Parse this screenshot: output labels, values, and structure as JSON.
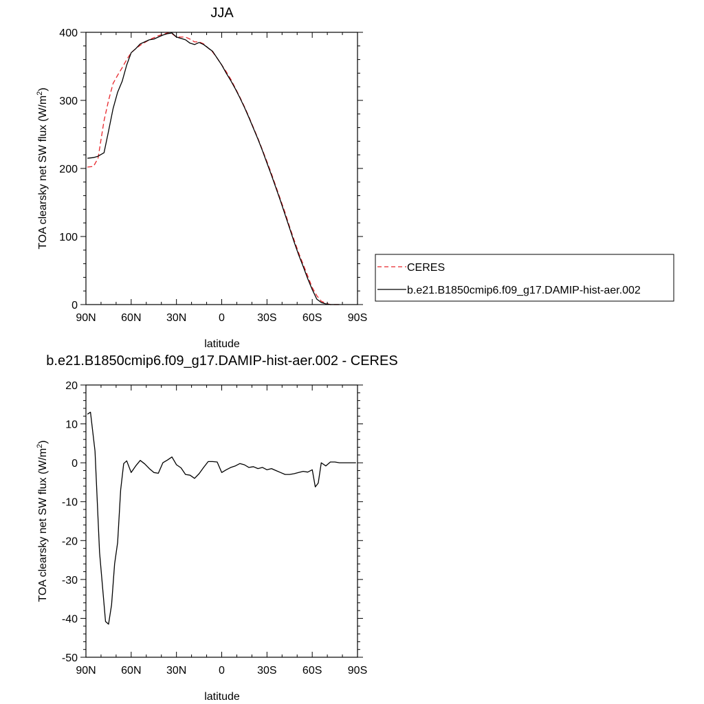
{
  "chart_data": [
    {
      "type": "line",
      "title": "JJA",
      "xlabel": "latitude",
      "ylabel": "TOA clearsky net SW flux (W/m",
      "ylabel_sup": "2",
      "ylabel_tail": ")",
      "xlim": [
        90,
        -90
      ],
      "ylim": [
        0,
        400
      ],
      "xticks": [
        90,
        60,
        30,
        0,
        -30,
        -60,
        -90
      ],
      "xtick_labels": [
        "90N",
        "60N",
        "30N",
        "0",
        "30S",
        "60S",
        "90S"
      ],
      "yticks": [
        0,
        100,
        200,
        300,
        400
      ],
      "ytick_labels": [
        "0",
        "100",
        "200",
        "300",
        "400"
      ],
      "legend_position": "right",
      "series": [
        {
          "name": "CERES",
          "color": "#e8262b",
          "dash": "dashed",
          "x": [
            89,
            85,
            82,
            78,
            75,
            72,
            69,
            66,
            63,
            60,
            57,
            54,
            51,
            48,
            45,
            42,
            39,
            36,
            33,
            30,
            27,
            24,
            21,
            18,
            15,
            12,
            9,
            6,
            3,
            0,
            -3,
            -6,
            -9,
            -12,
            -15,
            -18,
            -21,
            -24,
            -27,
            -30,
            -33,
            -36,
            -39,
            -42,
            -45,
            -48,
            -51,
            -54,
            -57,
            -60,
            -63,
            -66,
            -69,
            -72,
            -75,
            -78
          ],
          "y": [
            202,
            203,
            215,
            270,
            300,
            325,
            337,
            348,
            360,
            370,
            376,
            381,
            385,
            389,
            392,
            395,
            397,
            399,
            398,
            393,
            393,
            393,
            390,
            386,
            386,
            383,
            377,
            371,
            362,
            352,
            342,
            331,
            318,
            305,
            291,
            276,
            260,
            244,
            227,
            210,
            192,
            173,
            154,
            135,
            114,
            95,
            76,
            59,
            42,
            25,
            13,
            5,
            2,
            0,
            0,
            0
          ]
        },
        {
          "name": "b.e21.B1850cmip6.f09_g17.DAMIP-hist-aer.002",
          "color": "#000000",
          "dash": "solid",
          "x": [
            89,
            85,
            82,
            78,
            75,
            72,
            69,
            66,
            63,
            60,
            57,
            54,
            51,
            48,
            45,
            42,
            39,
            36,
            33,
            30,
            27,
            24,
            21,
            18,
            15,
            12,
            9,
            6,
            3,
            0,
            -3,
            -6,
            -9,
            -12,
            -15,
            -18,
            -21,
            -24,
            -27,
            -30,
            -33,
            -36,
            -39,
            -42,
            -45,
            -48,
            -51,
            -54,
            -57,
            -60,
            -63,
            -66,
            -69,
            -72,
            -75,
            -78
          ],
          "y": [
            215,
            216,
            218,
            223,
            255,
            288,
            312,
            328,
            352,
            370,
            376,
            383,
            386,
            389,
            390,
            393,
            396,
            398,
            399,
            393,
            391,
            389,
            384,
            382,
            385,
            382,
            377,
            372,
            362,
            352,
            340,
            329,
            317,
            304,
            290,
            275,
            259,
            243,
            226,
            208,
            190,
            171,
            152,
            132,
            112,
            92,
            73,
            56,
            38,
            22,
            8,
            3,
            1,
            0,
            0,
            0
          ]
        }
      ]
    },
    {
      "type": "line",
      "title": "b.e21.B1850cmip6.f09_g17.DAMIP-hist-aer.002 - CERES",
      "xlabel": "latitude",
      "ylabel": "TOA clearsky net SW flux (W/m",
      "ylabel_sup": "2",
      "ylabel_tail": ")",
      "xlim": [
        90,
        -90
      ],
      "ylim": [
        -50,
        20
      ],
      "xticks": [
        90,
        60,
        30,
        0,
        -30,
        -60,
        -90
      ],
      "xtick_labels": [
        "90N",
        "60N",
        "30N",
        "0",
        "30S",
        "60S",
        "90S"
      ],
      "yticks": [
        -50,
        -40,
        -30,
        -20,
        -10,
        0,
        10,
        20
      ],
      "ytick_labels": [
        "-50",
        "-40",
        "-30",
        "-20",
        "-10",
        "0",
        "10",
        "20"
      ],
      "series": [
        {
          "color": "#000000",
          "dash": "solid",
          "x": [
            89,
            87,
            84,
            81,
            77,
            75,
            73,
            71,
            69,
            67,
            65,
            63,
            60,
            57,
            54,
            51,
            48,
            45,
            42,
            39,
            36,
            33,
            30,
            27,
            24,
            21,
            18,
            15,
            12,
            9,
            6,
            3,
            0,
            -3,
            -6,
            -9,
            -12,
            -15,
            -18,
            -21,
            -24,
            -27,
            -30,
            -33,
            -36,
            -39,
            -42,
            -45,
            -48,
            -51,
            -54,
            -57,
            -60,
            -62,
            -64,
            -66,
            -69,
            -72,
            -75,
            -78,
            -81,
            -84,
            -87,
            -89
          ],
          "y": [
            12.5,
            13,
            3,
            -23,
            -40.8,
            -41.5,
            -36.5,
            -26,
            -20.5,
            -7,
            -0.2,
            0.5,
            -2.5,
            -0.8,
            0.6,
            -0.3,
            -1.5,
            -2.5,
            -2.7,
            0,
            0.7,
            1.5,
            -0.5,
            -1.3,
            -3,
            -3.2,
            -4,
            -2.8,
            -1.2,
            0.3,
            0.3,
            0.2,
            -2.5,
            -1.8,
            -1.2,
            -0.8,
            -0.2,
            -0.5,
            -1.2,
            -1,
            -1.5,
            -1.2,
            -1.8,
            -1.5,
            -2,
            -2.5,
            -3,
            -3,
            -2.8,
            -2.5,
            -2.2,
            -2.4,
            -1.8,
            -6.2,
            -5.2,
            0,
            -0.8,
            0.2,
            0.2,
            0,
            0,
            0,
            0,
            0
          ]
        }
      ]
    }
  ]
}
